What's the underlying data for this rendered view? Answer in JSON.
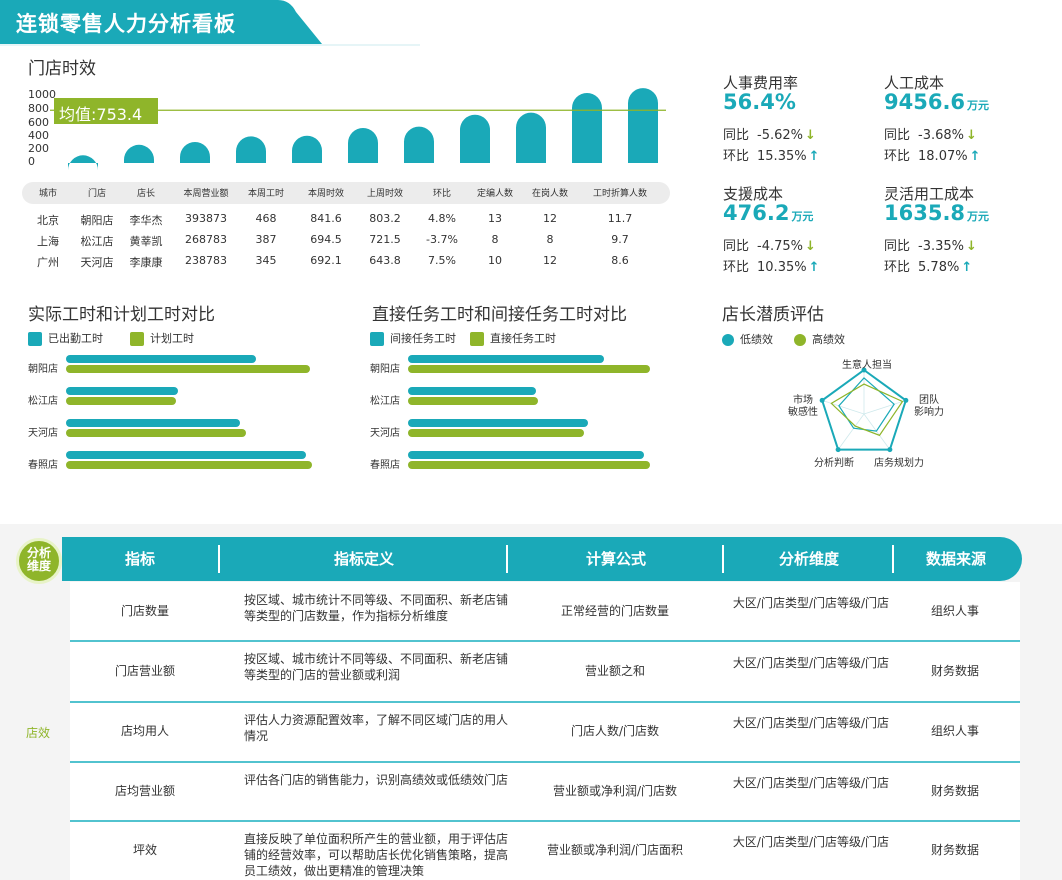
{
  "dashboard": {
    "title": "连锁零售人力分析看板"
  },
  "store_efficiency": {
    "title": "门店时效",
    "avg_label": "均值:753.4",
    "y_ticks": [
      "1000",
      "800",
      "600",
      "400",
      "200",
      "0"
    ]
  },
  "chart_data": [
    {
      "type": "bar",
      "title": "门店时效",
      "values": [
        110,
        260,
        300,
        380,
        390,
        500,
        520,
        690,
        720,
        1000,
        1070
      ],
      "average": 753.4,
      "ylim": [
        0,
        1000
      ],
      "y_ticks": [
        0,
        200,
        400,
        600,
        800,
        1000
      ],
      "colors": {
        "bar": "#1aa9b8",
        "avg_line": "#8fb52a"
      }
    },
    {
      "type": "bar",
      "orientation": "horizontal",
      "title": "实际工时和计划工时对比",
      "categories": [
        "朝阳店",
        "松江店",
        "天河店",
        "春照店"
      ],
      "series": [
        {
          "name": "已出勤工时",
          "values": [
            190,
            112,
            174,
            240
          ],
          "color": "#1aa9b8"
        },
        {
          "name": "计划工时",
          "values": [
            244,
            110,
            180,
            246
          ],
          "color": "#8fb52a"
        }
      ]
    },
    {
      "type": "bar",
      "orientation": "horizontal",
      "title": "直接任务工时和间接任务工时对比",
      "categories": [
        "朝阳店",
        "松江店",
        "天河店",
        "春照店"
      ],
      "series": [
        {
          "name": "间接任务工时",
          "values": [
            196,
            128,
            180,
            236
          ],
          "color": "#1aa9b8"
        },
        {
          "name": "直接任务工时",
          "values": [
            242,
            130,
            176,
            242
          ],
          "color": "#8fb52a"
        }
      ]
    },
    {
      "type": "radar",
      "title": "店长潜质评估",
      "axes": [
        "生意人担当",
        "团队影响力",
        "店务规划力",
        "分析判断",
        "市场敏感性"
      ],
      "series": [
        {
          "name": "低绩效",
          "values": [
            0.82,
            0.72,
            0.48,
            0.4,
            0.6
          ],
          "color": "#1aa9b8"
        },
        {
          "name": "高绩效",
          "values": [
            0.68,
            0.92,
            0.6,
            0.34,
            0.78
          ],
          "color": "#8fb52a"
        }
      ]
    }
  ],
  "kpis": [
    {
      "label": "人事费用率",
      "value": "56.4%",
      "unit": "",
      "yoy_label": "同比",
      "yoy": "-5.62%",
      "yoy_dir": "down",
      "mom_label": "环比",
      "mom": "15.35%",
      "mom_dir": "up"
    },
    {
      "label": "人工成本",
      "value": "9456.6",
      "unit": "万元",
      "yoy_label": "同比",
      "yoy": "-3.68%",
      "yoy_dir": "down",
      "mom_label": "环比",
      "mom": "18.07%",
      "mom_dir": "up"
    },
    {
      "label": "支援成本",
      "value": "476.2",
      "unit": "万元",
      "yoy_label": "同比",
      "yoy": "-4.75%",
      "yoy_dir": "down",
      "mom_label": "环比",
      "mom": "10.35%",
      "mom_dir": "up"
    },
    {
      "label": "灵活用工成本",
      "value": "1635.8",
      "unit": "万元",
      "yoy_label": "同比",
      "yoy": "-3.35%",
      "yoy_dir": "down",
      "mom_label": "环比",
      "mom": "5.78%",
      "mom_dir": "up"
    }
  ],
  "store_table": {
    "headers": [
      "城市",
      "门店",
      "店长",
      "本周营业额",
      "本周工时",
      "本周时效",
      "上周时效",
      "环比",
      "定编人数",
      "在岗人数",
      "工时折算人数"
    ],
    "rows": [
      [
        "北京",
        "朝阳店",
        "李华杰",
        "393873",
        "468",
        "841.6",
        "803.2",
        "4.8%",
        "13",
        "12",
        "11.7"
      ],
      [
        "上海",
        "松江店",
        "黄莘凯",
        "268783",
        "387",
        "694.5",
        "721.5",
        "-3.7%",
        "8",
        "8",
        "9.7"
      ],
      [
        "广州",
        "天河店",
        "李康康",
        "238783",
        "345",
        "692.1",
        "643.8",
        "7.5%",
        "10",
        "12",
        "8.6"
      ]
    ]
  },
  "work_hours": {
    "title": "实际工时和计划工时对比",
    "legend": [
      "已出勤工时",
      "计划工时"
    ],
    "categories": [
      "朝阳店",
      "松江店",
      "天河店",
      "春照店"
    ]
  },
  "task_hours": {
    "title": "直接任务工时和间接任务工时对比",
    "legend": [
      "间接任务工时",
      "直接任务工时"
    ],
    "categories": [
      "朝阳店",
      "松江店",
      "天河店",
      "春照店"
    ]
  },
  "radar": {
    "title": "店长潜质评估",
    "legend": [
      "低绩效",
      "高绩效"
    ],
    "axes": [
      "生意人担当",
      "团队\n影响力",
      "店务规划力",
      "分析判断",
      "市场\n敏感性"
    ]
  },
  "metrics_table": {
    "badge": "分析\n维度",
    "category": "店效",
    "headers": [
      "指标",
      "指标定义",
      "计算公式",
      "分析维度",
      "数据来源"
    ],
    "rows": [
      [
        "门店数量",
        "按区域、城市统计不同等级、不同面积、新老店铺等类型的门店数量，作为指标分析维度",
        "正常经营的门店数量",
        "大区/门店类型/门店等级/门店",
        "组织人事"
      ],
      [
        "门店营业额",
        "按区域、城市统计不同等级、不同面积、新老店铺等类型的门店的营业额或利润",
        "营业额之和",
        "大区/门店类型/门店等级/门店",
        "财务数据"
      ],
      [
        "店均用人",
        "评估人力资源配置效率，了解不同区域门店的用人情况",
        "门店人数/门店数",
        "大区/门店类型/门店等级/门店",
        "组织人事"
      ],
      [
        "店均营业额",
        "评估各门店的销售能力，识别高绩效或低绩效门店",
        "营业额或净利润/门店数",
        "大区/门店类型/门店等级/门店",
        "财务数据"
      ],
      [
        "坪效",
        "直接反映了单位面积所产生的营业额，用于评估店铺的经营效率，可以帮助店长优化销售策略，提高员工绩效，做出更精准的管理决策",
        "营业额或净利润/门店面积",
        "大区/门店类型/门店等级/门店",
        "财务数据"
      ]
    ]
  }
}
